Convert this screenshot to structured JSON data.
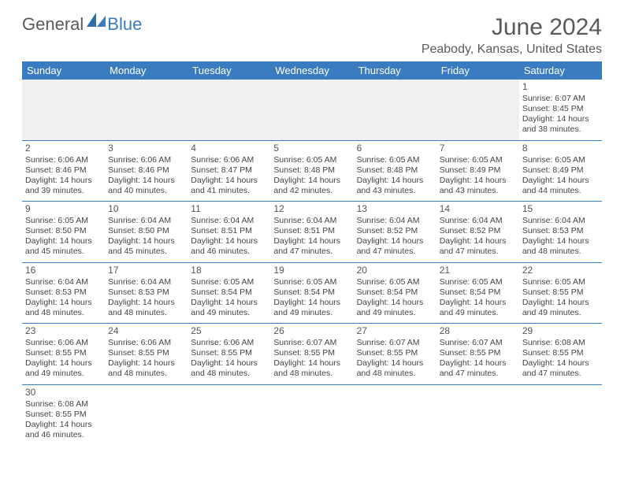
{
  "logo": {
    "text_gray": "General",
    "text_blue": "Blue"
  },
  "title": "June 2024",
  "location": "Peabody, Kansas, United States",
  "header_bg": "#3b7bbf",
  "header_fg": "#ffffff",
  "divider_color": "#3b7bbf",
  "day_headers": [
    "Sunday",
    "Monday",
    "Tuesday",
    "Wednesday",
    "Thursday",
    "Friday",
    "Saturday"
  ],
  "weeks": [
    [
      null,
      null,
      null,
      null,
      null,
      null,
      {
        "n": "1",
        "sr": "6:07 AM",
        "ss": "8:45 PM",
        "dl": "14 hours and 38 minutes."
      }
    ],
    [
      {
        "n": "2",
        "sr": "6:06 AM",
        "ss": "8:46 PM",
        "dl": "14 hours and 39 minutes."
      },
      {
        "n": "3",
        "sr": "6:06 AM",
        "ss": "8:46 PM",
        "dl": "14 hours and 40 minutes."
      },
      {
        "n": "4",
        "sr": "6:06 AM",
        "ss": "8:47 PM",
        "dl": "14 hours and 41 minutes."
      },
      {
        "n": "5",
        "sr": "6:05 AM",
        "ss": "8:48 PM",
        "dl": "14 hours and 42 minutes."
      },
      {
        "n": "6",
        "sr": "6:05 AM",
        "ss": "8:48 PM",
        "dl": "14 hours and 43 minutes."
      },
      {
        "n": "7",
        "sr": "6:05 AM",
        "ss": "8:49 PM",
        "dl": "14 hours and 43 minutes."
      },
      {
        "n": "8",
        "sr": "6:05 AM",
        "ss": "8:49 PM",
        "dl": "14 hours and 44 minutes."
      }
    ],
    [
      {
        "n": "9",
        "sr": "6:05 AM",
        "ss": "8:50 PM",
        "dl": "14 hours and 45 minutes."
      },
      {
        "n": "10",
        "sr": "6:04 AM",
        "ss": "8:50 PM",
        "dl": "14 hours and 45 minutes."
      },
      {
        "n": "11",
        "sr": "6:04 AM",
        "ss": "8:51 PM",
        "dl": "14 hours and 46 minutes."
      },
      {
        "n": "12",
        "sr": "6:04 AM",
        "ss": "8:51 PM",
        "dl": "14 hours and 47 minutes."
      },
      {
        "n": "13",
        "sr": "6:04 AM",
        "ss": "8:52 PM",
        "dl": "14 hours and 47 minutes."
      },
      {
        "n": "14",
        "sr": "6:04 AM",
        "ss": "8:52 PM",
        "dl": "14 hours and 47 minutes."
      },
      {
        "n": "15",
        "sr": "6:04 AM",
        "ss": "8:53 PM",
        "dl": "14 hours and 48 minutes."
      }
    ],
    [
      {
        "n": "16",
        "sr": "6:04 AM",
        "ss": "8:53 PM",
        "dl": "14 hours and 48 minutes."
      },
      {
        "n": "17",
        "sr": "6:04 AM",
        "ss": "8:53 PM",
        "dl": "14 hours and 48 minutes."
      },
      {
        "n": "18",
        "sr": "6:05 AM",
        "ss": "8:54 PM",
        "dl": "14 hours and 49 minutes."
      },
      {
        "n": "19",
        "sr": "6:05 AM",
        "ss": "8:54 PM",
        "dl": "14 hours and 49 minutes."
      },
      {
        "n": "20",
        "sr": "6:05 AM",
        "ss": "8:54 PM",
        "dl": "14 hours and 49 minutes."
      },
      {
        "n": "21",
        "sr": "6:05 AM",
        "ss": "8:54 PM",
        "dl": "14 hours and 49 minutes."
      },
      {
        "n": "22",
        "sr": "6:05 AM",
        "ss": "8:55 PM",
        "dl": "14 hours and 49 minutes."
      }
    ],
    [
      {
        "n": "23",
        "sr": "6:06 AM",
        "ss": "8:55 PM",
        "dl": "14 hours and 49 minutes."
      },
      {
        "n": "24",
        "sr": "6:06 AM",
        "ss": "8:55 PM",
        "dl": "14 hours and 48 minutes."
      },
      {
        "n": "25",
        "sr": "6:06 AM",
        "ss": "8:55 PM",
        "dl": "14 hours and 48 minutes."
      },
      {
        "n": "26",
        "sr": "6:07 AM",
        "ss": "8:55 PM",
        "dl": "14 hours and 48 minutes."
      },
      {
        "n": "27",
        "sr": "6:07 AM",
        "ss": "8:55 PM",
        "dl": "14 hours and 48 minutes."
      },
      {
        "n": "28",
        "sr": "6:07 AM",
        "ss": "8:55 PM",
        "dl": "14 hours and 47 minutes."
      },
      {
        "n": "29",
        "sr": "6:08 AM",
        "ss": "8:55 PM",
        "dl": "14 hours and 47 minutes."
      }
    ],
    [
      {
        "n": "30",
        "sr": "6:08 AM",
        "ss": "8:55 PM",
        "dl": "14 hours and 46 minutes."
      },
      null,
      null,
      null,
      null,
      null,
      null
    ]
  ],
  "labels": {
    "sunrise": "Sunrise:",
    "sunset": "Sunset:",
    "daylight": "Daylight:"
  }
}
